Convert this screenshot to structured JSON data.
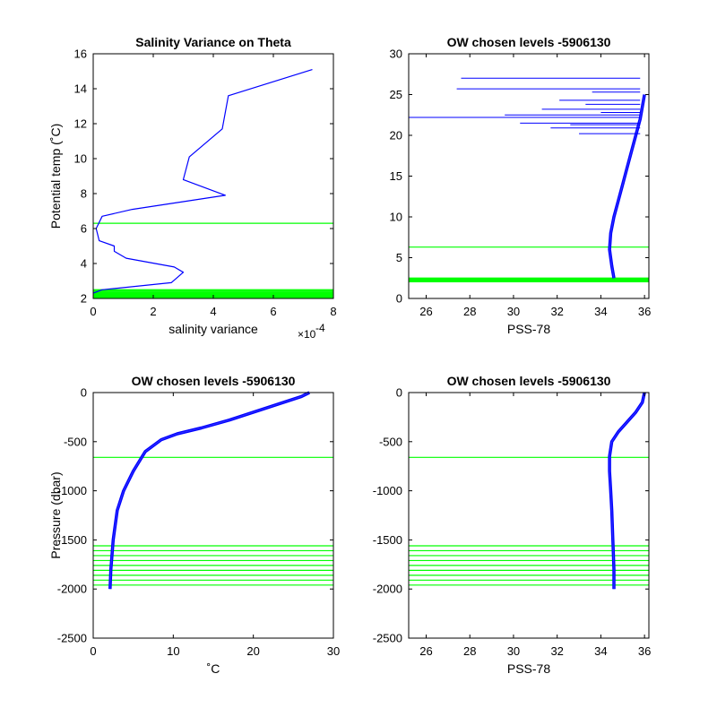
{
  "colors": {
    "profile": "#0000ff",
    "chosen_level": "#00ff00",
    "axis": "#000000"
  },
  "chart_data": [
    {
      "type": "line",
      "title": "Salinity Variance on Theta",
      "xlabel": "salinity variance",
      "ylabel": "Potential temp (˚C)",
      "x_multiplier_label": "×10",
      "x_multiplier_exponent": "-4",
      "xlim": [
        0,
        8
      ],
      "ylim": [
        2,
        16
      ],
      "xticks": [
        "0",
        "2",
        "4",
        "6",
        "8"
      ],
      "yticks": [
        "2",
        "4",
        "6",
        "8",
        "10",
        "12",
        "14",
        "16"
      ],
      "series": [
        {
          "x": [
            7.3,
            4.5,
            4.3,
            3.2,
            3.0,
            4.4,
            1.3,
            0.3,
            0.1,
            0.2,
            0.7,
            0.7,
            1.1,
            2.7,
            3.0,
            2.6,
            0.3,
            0.0
          ],
          "y": [
            15.1,
            13.6,
            11.7,
            10.1,
            8.8,
            7.9,
            7.1,
            6.7,
            6.0,
            5.3,
            5.0,
            4.7,
            4.3,
            3.8,
            3.5,
            2.9,
            2.5,
            2.3
          ]
        }
      ],
      "chosen_levels": [
        6.3,
        2.05,
        2.1,
        2.15,
        2.2,
        2.25,
        2.3,
        2.35,
        2.4,
        2.45,
        2.5
      ]
    },
    {
      "type": "line",
      "title": "OW chosen levels -5906130",
      "xlabel": "PSS-78",
      "ylabel": "",
      "xlim": [
        25.2,
        36.2
      ],
      "ylim": [
        0,
        30
      ],
      "xticks": [
        "26",
        "28",
        "30",
        "32",
        "34",
        "36"
      ],
      "yticks": [
        "0",
        "5",
        "10",
        "15",
        "20",
        "25",
        "30"
      ],
      "series": [
        {
          "x": [
            34.6,
            34.5,
            34.4,
            34.45,
            34.6,
            34.8,
            35.0,
            35.2,
            35.4,
            35.6,
            35.8,
            36.0
          ],
          "y": [
            2.5,
            4.0,
            6.0,
            8.0,
            10.0,
            12.0,
            14.0,
            16.0,
            18.0,
            20.0,
            22.0,
            25.0
          ]
        }
      ],
      "spikes": [
        {
          "x": 25.2,
          "y": 22.2
        },
        {
          "x": 27.4,
          "y": 25.7
        },
        {
          "x": 27.6,
          "y": 27.0
        },
        {
          "x": 29.6,
          "y": 22.5
        },
        {
          "x": 30.3,
          "y": 21.5
        },
        {
          "x": 31.3,
          "y": 23.2
        },
        {
          "x": 31.7,
          "y": 20.9
        },
        {
          "x": 32.1,
          "y": 24.3
        },
        {
          "x": 32.6,
          "y": 21.3
        },
        {
          "x": 33.0,
          "y": 20.2
        },
        {
          "x": 33.3,
          "y": 23.8
        },
        {
          "x": 33.6,
          "y": 25.3
        },
        {
          "x": 34.0,
          "y": 22.8
        }
      ],
      "chosen_levels": [
        6.3,
        2.05,
        2.1,
        2.15,
        2.2,
        2.25,
        2.3,
        2.35,
        2.4,
        2.45,
        2.5
      ]
    },
    {
      "type": "line",
      "title": "OW chosen levels -5906130",
      "xlabel": "˚C",
      "ylabel": "Pressure (dbar)",
      "xlim": [
        0,
        30
      ],
      "ylim": [
        -2500,
        0
      ],
      "xticks": [
        "0",
        "10",
        "20",
        "30"
      ],
      "yticks": [
        "0",
        "-500",
        "-1000",
        "-1500",
        "-2000",
        "-2500"
      ],
      "series": [
        {
          "x": [
            2.1,
            2.2,
            2.5,
            3.0,
            3.8,
            5.0,
            6.5,
            8.5,
            10.5,
            13.5,
            17.0,
            20.0,
            23.0,
            26.0,
            27.0
          ],
          "y": [
            -2000,
            -1800,
            -1500,
            -1200,
            -1000,
            -800,
            -600,
            -480,
            -420,
            -360,
            -280,
            -200,
            -120,
            -40,
            0
          ]
        }
      ],
      "chosen_levels": [
        -660,
        -1560,
        -1610,
        -1660,
        -1710,
        -1760,
        -1810,
        -1860,
        -1910,
        -1960
      ]
    },
    {
      "type": "line",
      "title": "OW chosen levels -5906130",
      "xlabel": "PSS-78",
      "ylabel": "",
      "xlim": [
        25.2,
        36.2
      ],
      "ylim": [
        -2500,
        0
      ],
      "xticks": [
        "26",
        "28",
        "30",
        "32",
        "34",
        "36"
      ],
      "yticks": [
        "0",
        "-500",
        "-1000",
        "-1500",
        "-2000",
        "-2500"
      ],
      "series": [
        {
          "x": [
            34.6,
            34.6,
            34.55,
            34.5,
            34.45,
            34.4,
            34.4,
            34.5,
            34.8,
            35.2,
            35.6,
            35.9,
            36.0
          ],
          "y": [
            -2000,
            -1800,
            -1500,
            -1200,
            -1000,
            -800,
            -650,
            -500,
            -400,
            -300,
            -200,
            -100,
            0
          ]
        }
      ],
      "chosen_levels": [
        -660,
        -1560,
        -1610,
        -1660,
        -1710,
        -1760,
        -1810,
        -1860,
        -1910,
        -1960
      ]
    }
  ]
}
